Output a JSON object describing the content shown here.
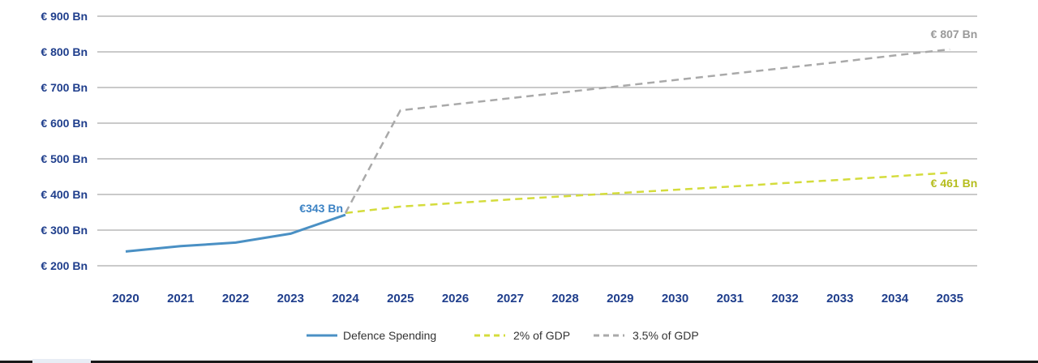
{
  "chart_data": {
    "type": "line",
    "categories": [
      "2020",
      "2021",
      "2022",
      "2023",
      "2024",
      "2025",
      "2026",
      "2027",
      "2028",
      "2029",
      "2030",
      "2031",
      "2032",
      "2033",
      "2034",
      "2035"
    ],
    "ylim": [
      200,
      900
    ],
    "y_ticks": [
      {
        "value": 900,
        "label": "€ 900 Bn"
      },
      {
        "value": 800,
        "label": "€ 800 Bn"
      },
      {
        "value": 700,
        "label": "€ 700 Bn"
      },
      {
        "value": 600,
        "label": "€ 600 Bn"
      },
      {
        "value": 500,
        "label": "€ 500 Bn"
      },
      {
        "value": 400,
        "label": "€ 400 Bn"
      },
      {
        "value": 300,
        "label": "€ 300 Bn"
      },
      {
        "value": 200,
        "label": "€ 200 Bn"
      }
    ],
    "grid": true,
    "legend_position": "bottom-center",
    "series": [
      {
        "name": "Defence Spending",
        "color": "#4a90c4",
        "style": "solid",
        "values": [
          240,
          255,
          265,
          290,
          343,
          null,
          null,
          null,
          null,
          null,
          null,
          null,
          null,
          null,
          null,
          null
        ]
      },
      {
        "name": "2% of GDP",
        "color": "#d4dc3c",
        "style": "dashed",
        "values": [
          null,
          null,
          null,
          null,
          348,
          366,
          376,
          386,
          395,
          404,
          413,
          422,
          432,
          441,
          451,
          461
        ]
      },
      {
        "name": "3.5% of GDP",
        "color": "#a9a9a9",
        "style": "dashed",
        "values": [
          null,
          null,
          null,
          null,
          348,
          636,
          653,
          670,
          687,
          704,
          721,
          738,
          755,
          772,
          790,
          807
        ]
      }
    ],
    "annotations": [
      {
        "text": "€343 Bn",
        "series": 0,
        "index": 4,
        "color": "#3b82c4"
      },
      {
        "text": "€ 807 Bn",
        "series": 2,
        "index": 15,
        "color": "#9a9a9a"
      },
      {
        "text": "€ 461 Bn",
        "series": 1,
        "index": 15,
        "color": "#b5bd1e"
      }
    ]
  }
}
